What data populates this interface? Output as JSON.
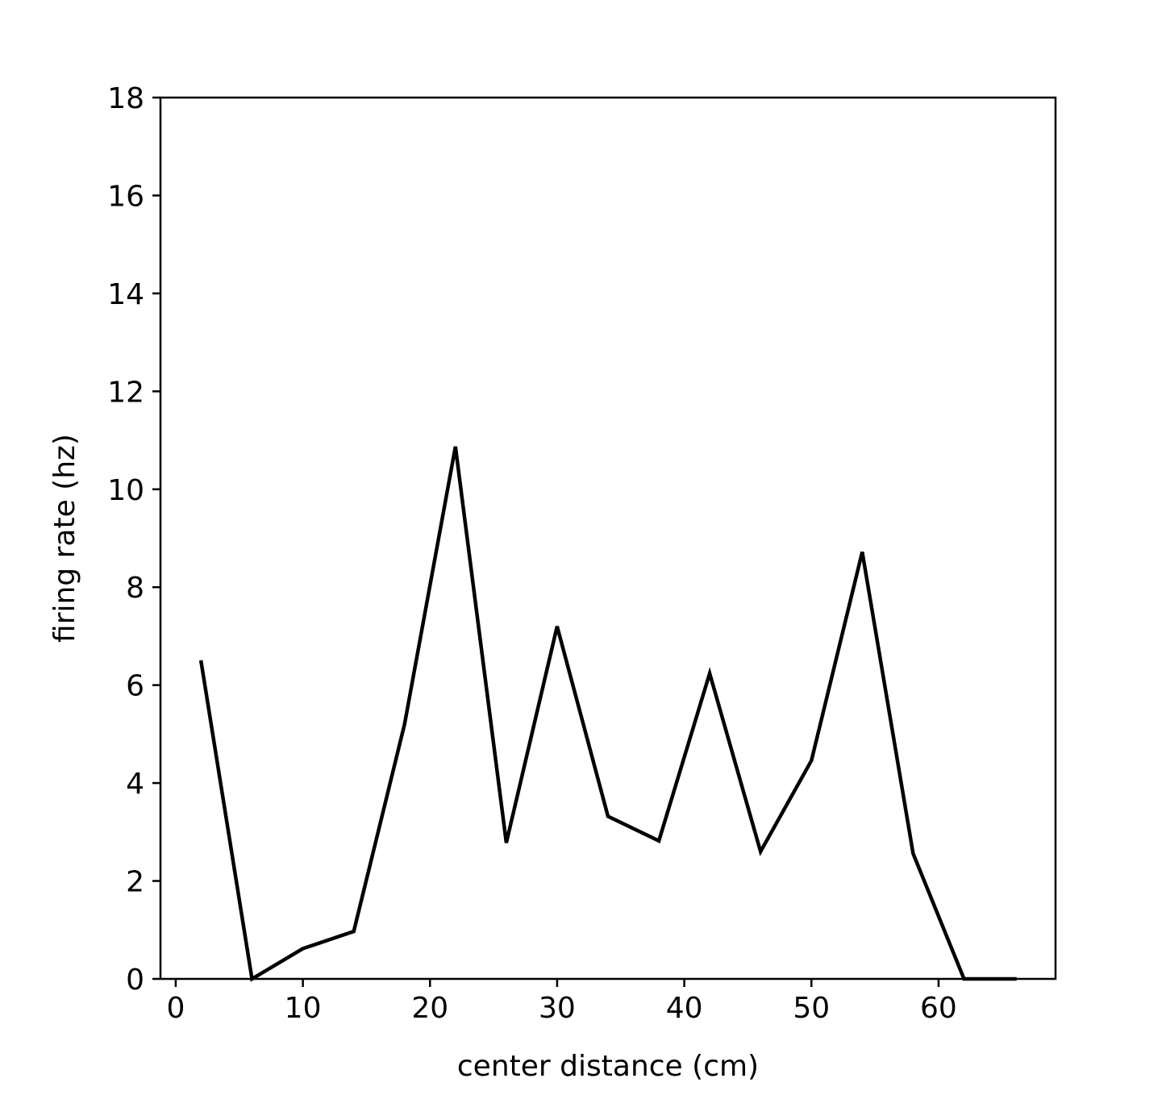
{
  "chart_data": {
    "type": "line",
    "xlabel": "center distance (cm)",
    "ylabel": "firing rate (hz)",
    "xlim": [
      -1.2,
      69.2
    ],
    "ylim": [
      0,
      18
    ],
    "xticks": [
      0,
      10,
      20,
      30,
      40,
      50,
      60
    ],
    "yticks": [
      0,
      2,
      4,
      6,
      8,
      10,
      12,
      14,
      16,
      18
    ],
    "grid": false,
    "series": [
      {
        "color": "#000000",
        "x": [
          2,
          6,
          10,
          14,
          18,
          22,
          26,
          30,
          34,
          38,
          42,
          46,
          50,
          54,
          58,
          62,
          66
        ],
        "y": [
          6.47,
          0.0,
          0.62,
          0.97,
          5.2,
          10.87,
          2.78,
          7.2,
          3.32,
          2.82,
          6.24,
          2.6,
          4.46,
          8.72,
          2.56,
          0.0,
          0.0
        ]
      }
    ]
  }
}
